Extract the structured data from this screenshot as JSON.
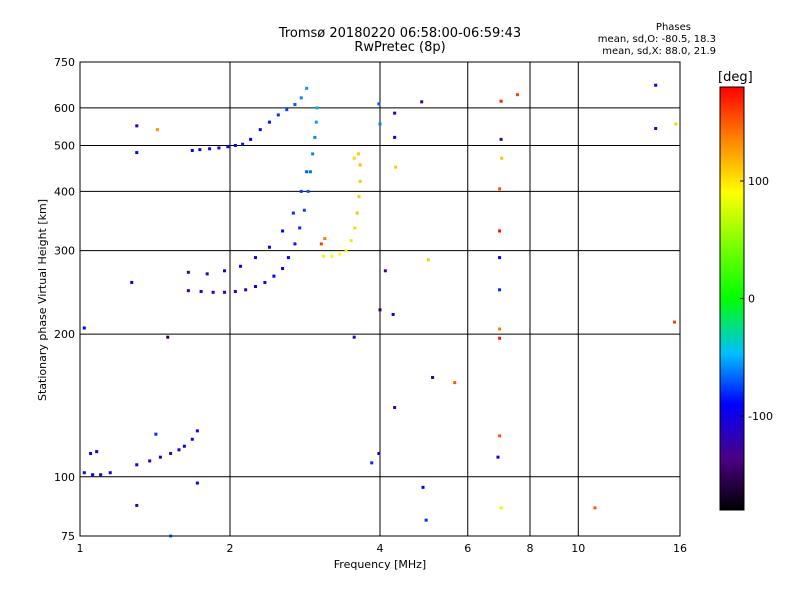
{
  "header": {
    "title_line1": "Tromsø 20180220 06:58:00-06:59:43",
    "title_line2": "RwPretec (8p)"
  },
  "stats": {
    "heading": "Phases",
    "line_o": "mean, sd,O: -80.5, 18.3",
    "line_x": "mean, sd,X: 88.0, 21.9"
  },
  "chart_data": {
    "type": "scatter",
    "xlabel": "Frequency [MHz]",
    "ylabel": "Stationary phase Virtual Height [km]",
    "x_scale": "log",
    "y_scale": "log",
    "xlim": [
      1,
      16
    ],
    "ylim": [
      75,
      750
    ],
    "x_ticks": [
      1,
      2,
      4,
      6,
      8,
      10,
      16
    ],
    "y_ticks": [
      75,
      100,
      200,
      300,
      400,
      500,
      600,
      750
    ],
    "x_grid": [
      2,
      4,
      6,
      8,
      10
    ],
    "y_grid": [
      100,
      200,
      300,
      400,
      500,
      600
    ],
    "colorbar": {
      "label": "[deg]",
      "range": [
        -180,
        180
      ],
      "ticks": [
        -100,
        0,
        100
      ]
    },
    "series": [
      {
        "comment_free": true,
        "points": [
          [
            1.68,
            488,
            -90
          ],
          [
            1.74,
            490,
            -95
          ],
          [
            1.82,
            492,
            -92
          ],
          [
            1.9,
            494,
            -100
          ],
          [
            1.98,
            497,
            -88
          ],
          [
            2.05,
            500,
            -95
          ],
          [
            2.12,
            503,
            -85
          ],
          [
            2.2,
            515,
            -90
          ],
          [
            2.3,
            540,
            -88
          ],
          [
            2.4,
            560,
            -85
          ],
          [
            2.5,
            580,
            -80
          ],
          [
            2.6,
            595,
            -75
          ],
          [
            2.7,
            610,
            -70
          ],
          [
            2.78,
            630,
            -60
          ],
          [
            2.85,
            660,
            -55
          ],
          [
            1.65,
            247,
            -110
          ],
          [
            1.75,
            246,
            -105
          ],
          [
            1.85,
            245,
            -100
          ],
          [
            1.95,
            245,
            -110
          ],
          [
            2.05,
            246,
            -100
          ],
          [
            2.15,
            248,
            -105
          ],
          [
            2.25,
            252,
            -95
          ],
          [
            2.35,
            257,
            -100
          ],
          [
            2.45,
            265,
            -90
          ],
          [
            2.55,
            275,
            -95
          ],
          [
            2.62,
            290,
            -90
          ],
          [
            2.7,
            310,
            -85
          ],
          [
            2.76,
            335,
            -80
          ],
          [
            2.82,
            365,
            -75
          ],
          [
            2.87,
            400,
            -70
          ],
          [
            2.9,
            440,
            -65
          ],
          [
            2.93,
            480,
            -60
          ],
          [
            2.96,
            520,
            -60
          ],
          [
            2.98,
            560,
            -55
          ],
          [
            2.99,
            600,
            -50
          ],
          [
            1.65,
            270,
            -120
          ],
          [
            1.8,
            268,
            -115
          ],
          [
            1.95,
            272,
            -110
          ],
          [
            2.1,
            278,
            -105
          ],
          [
            2.25,
            290,
            -100
          ],
          [
            2.4,
            305,
            -95
          ],
          [
            2.55,
            330,
            -90
          ],
          [
            2.68,
            360,
            -80
          ],
          [
            2.78,
            400,
            -75
          ],
          [
            2.85,
            440,
            -70
          ],
          [
            3.08,
            292,
            80
          ],
          [
            3.2,
            292,
            85
          ],
          [
            3.32,
            295,
            90
          ],
          [
            3.42,
            300,
            95
          ],
          [
            3.5,
            315,
            100
          ],
          [
            3.56,
            335,
            105
          ],
          [
            3.6,
            360,
            110
          ],
          [
            3.63,
            390,
            110
          ],
          [
            3.65,
            420,
            112
          ],
          [
            3.65,
            455,
            115
          ],
          [
            3.62,
            480,
            110
          ],
          [
            3.55,
            470,
            105
          ],
          [
            3.05,
            310,
            160
          ],
          [
            3.1,
            318,
            140
          ],
          [
            1.02,
            102,
            -100
          ],
          [
            1.06,
            101,
            -95
          ],
          [
            1.1,
            101,
            -105
          ],
          [
            1.15,
            102,
            -100
          ],
          [
            1.05,
            112,
            -95
          ],
          [
            1.08,
            113,
            -100
          ],
          [
            1.3,
            106,
            -95
          ],
          [
            1.38,
            108,
            -100
          ],
          [
            1.45,
            110,
            -110
          ],
          [
            1.52,
            112,
            -120
          ],
          [
            1.58,
            114,
            -100
          ],
          [
            1.62,
            116,
            -95
          ],
          [
            1.68,
            120,
            -100
          ],
          [
            1.72,
            125,
            -100
          ],
          [
            1.3,
            550,
            -100
          ],
          [
            1.3,
            483,
            -90
          ],
          [
            1.43,
            540,
            130
          ],
          [
            1.27,
            257,
            -90
          ],
          [
            1.02,
            206,
            -90
          ],
          [
            1.5,
            197,
            -150
          ],
          [
            1.3,
            87,
            -120
          ],
          [
            1.42,
            123,
            -80
          ],
          [
            1.52,
            75,
            -60
          ],
          [
            1.72,
            97,
            -90
          ],
          [
            3.98,
            612,
            -70
          ],
          [
            4.0,
            555,
            -60
          ],
          [
            4.28,
            585,
            -110
          ],
          [
            4.28,
            520,
            -100
          ],
          [
            4.3,
            450,
            110
          ],
          [
            4.1,
            272,
            -130
          ],
          [
            4.25,
            220,
            -90
          ],
          [
            4.0,
            225,
            -150
          ],
          [
            3.55,
            197,
            -110
          ],
          [
            4.28,
            140,
            -130
          ],
          [
            5.1,
            162,
            -120
          ],
          [
            5.65,
            158,
            150
          ],
          [
            4.88,
            95,
            -90
          ],
          [
            4.95,
            81,
            -80
          ],
          [
            3.98,
            112,
            -100
          ],
          [
            3.85,
            107,
            -80
          ],
          [
            5.0,
            287,
            110
          ],
          [
            4.85,
            618,
            -140
          ],
          [
            7.0,
            620,
            170
          ],
          [
            7.0,
            515,
            -130
          ],
          [
            7.02,
            470,
            110
          ],
          [
            6.95,
            405,
            150
          ],
          [
            6.95,
            330,
            175
          ],
          [
            6.95,
            290,
            -90
          ],
          [
            6.95,
            248,
            -80
          ],
          [
            6.95,
            205,
            140
          ],
          [
            6.95,
            196,
            170
          ],
          [
            6.95,
            122,
            150
          ],
          [
            6.9,
            110,
            -100
          ],
          [
            7.0,
            86,
            80
          ],
          [
            7.55,
            640,
            160
          ],
          [
            10.8,
            86,
            150
          ],
          [
            14.3,
            670,
            -100
          ],
          [
            14.3,
            543,
            -110
          ],
          [
            15.6,
            212,
            160
          ],
          [
            15.7,
            555,
            110
          ]
        ]
      }
    ]
  }
}
